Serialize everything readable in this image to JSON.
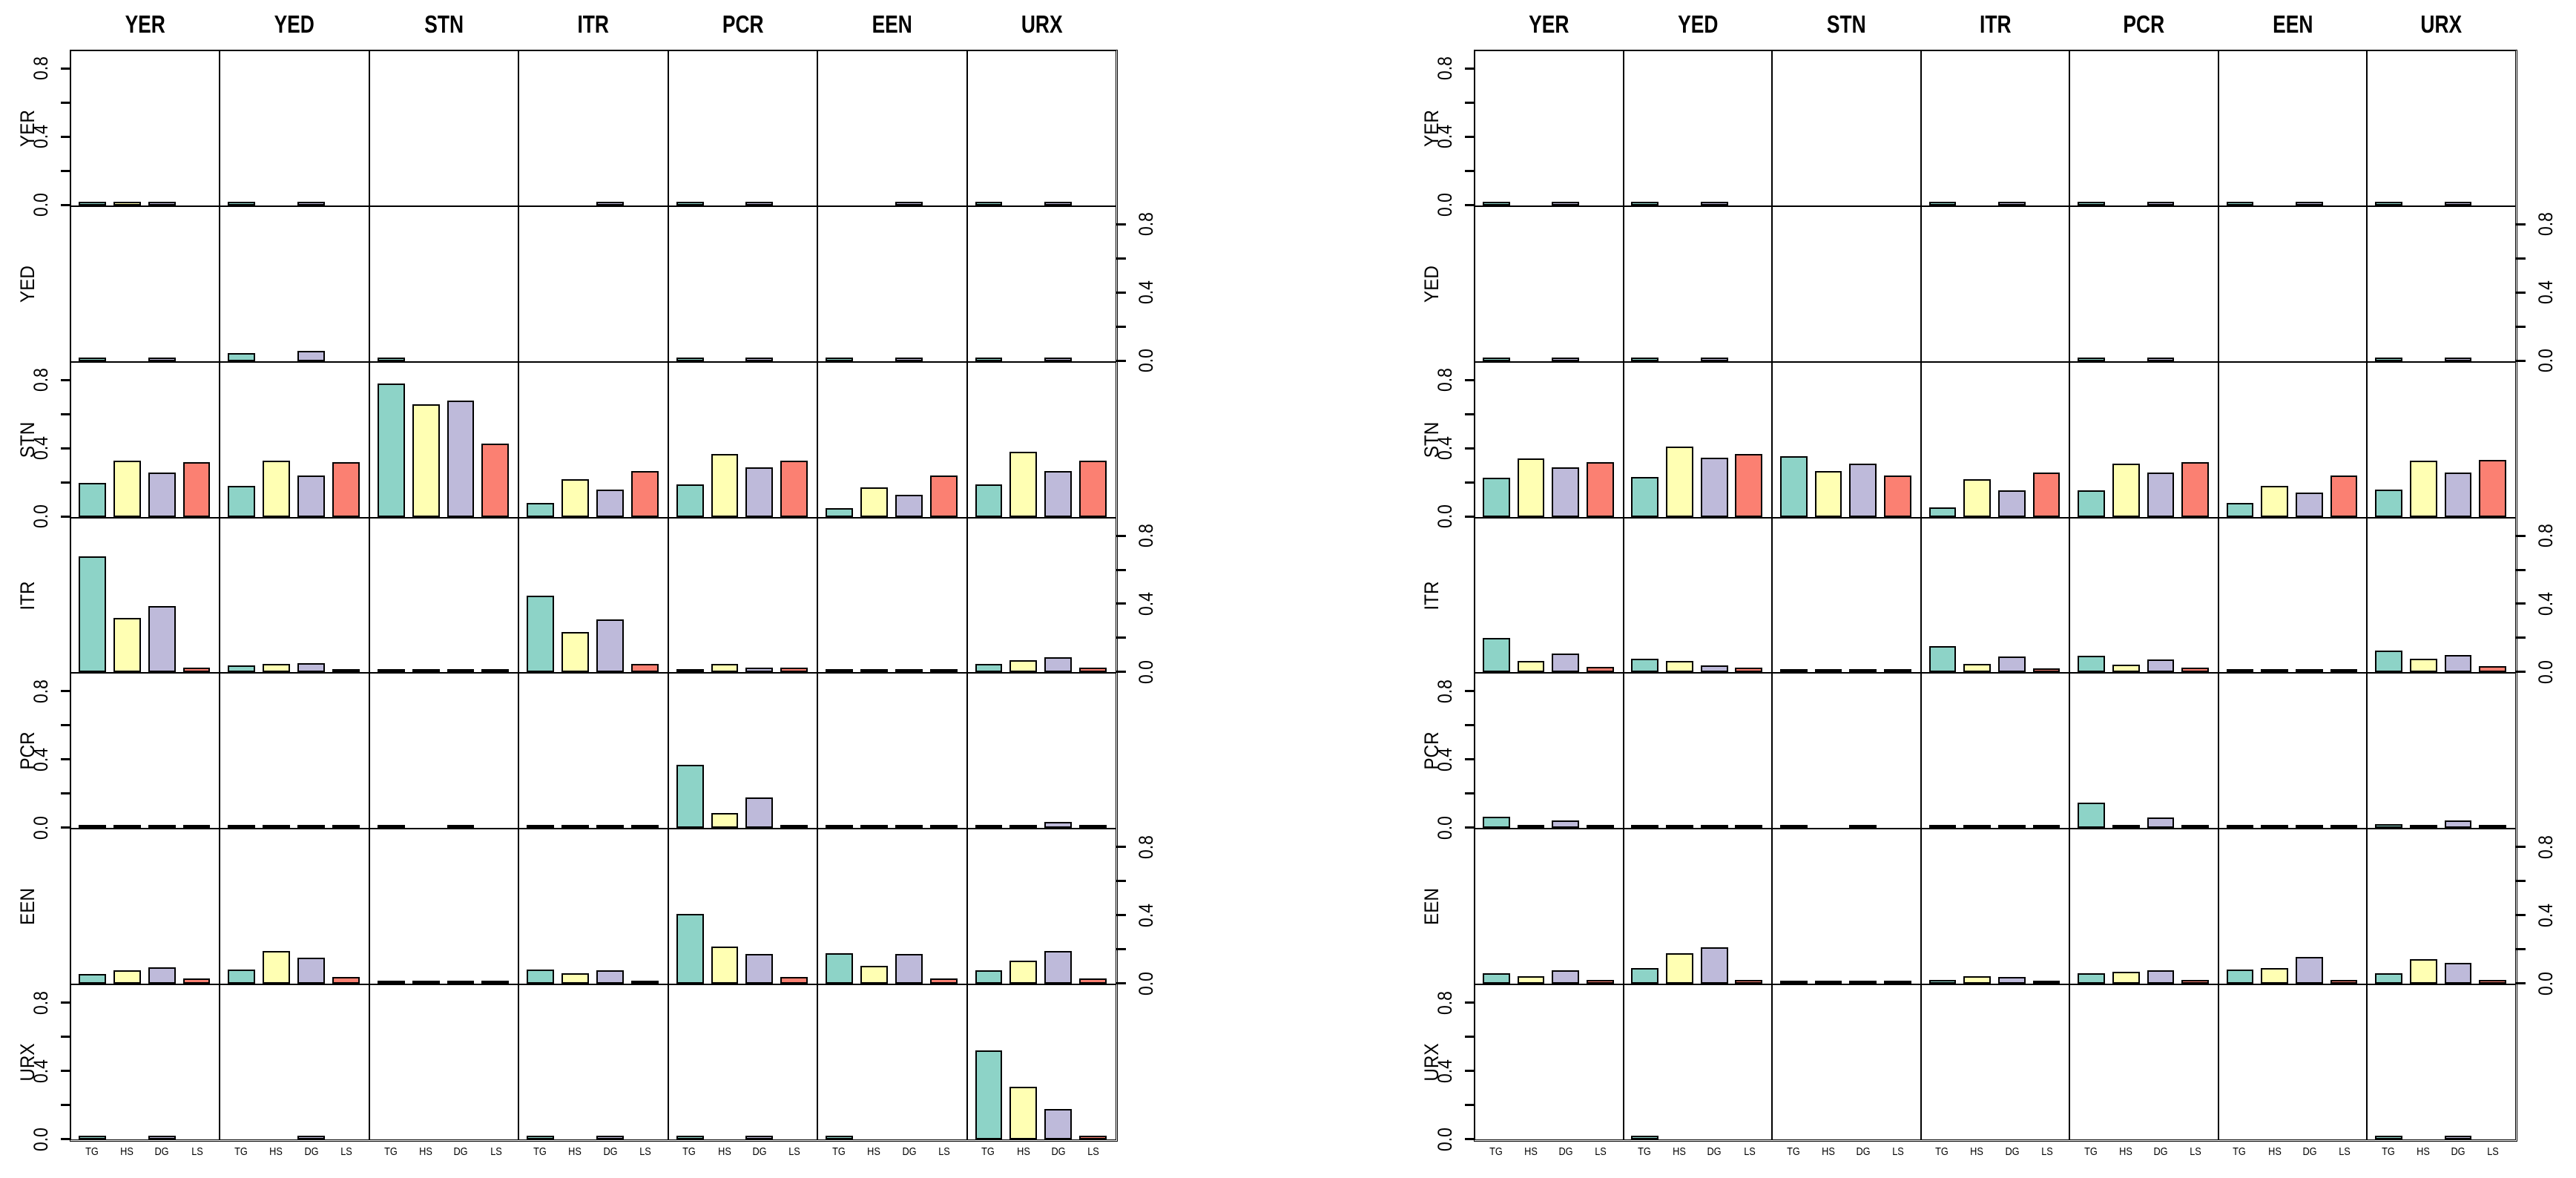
{
  "palette": {
    "bars": {
      "TG": "#8DD3C7",
      "HS": "#FFFFB3",
      "DG": "#BEBADA",
      "LS": "#FB8072"
    },
    "outline": "#000000",
    "text": "#000000",
    "background": "#ffffff"
  },
  "axis": {
    "tick_values": [
      0,
      0.2,
      0.4,
      0.6,
      0.8
    ],
    "labeled_ticks": [
      {
        "value": 0,
        "label": "0.0"
      },
      {
        "value": 0.4,
        "label": "0.4"
      },
      {
        "value": 0.8,
        "label": "0.8"
      }
    ],
    "ymax": 0.9
  },
  "chart_data": [
    {
      "type": "bar",
      "name": "left-trellis",
      "col_labels": [
        "YER",
        "YED",
        "STN",
        "ITR",
        "PCR",
        "EEN",
        "URX"
      ],
      "row_labels": [
        "YER",
        "YED",
        "STN",
        "ITR",
        "PCR",
        "EEN",
        "URX"
      ],
      "bar_labels": [
        "TG",
        "HS",
        "DG",
        "LS"
      ],
      "ylim": [
        0,
        0.9
      ],
      "values": [
        [
          [
            0.012,
            0.004,
            0.012,
            0
          ],
          [
            0.008,
            0,
            0.012,
            0
          ],
          [
            0,
            0,
            0,
            0
          ],
          [
            0,
            0,
            0.008,
            0
          ],
          [
            0.008,
            0,
            0.008,
            0
          ],
          [
            0,
            0,
            0.008,
            0
          ],
          [
            0.012,
            0,
            0.01,
            0
          ]
        ],
        [
          [
            0.008,
            0,
            0.008,
            0
          ],
          [
            0.045,
            0,
            0.06,
            0
          ],
          [
            0.006,
            0,
            0,
            0
          ],
          [
            0,
            0,
            0,
            0
          ],
          [
            0.006,
            0,
            0.006,
            0
          ],
          [
            0.005,
            0,
            0.005,
            0
          ],
          [
            0.006,
            0,
            0.008,
            0
          ]
        ],
        [
          [
            0.2,
            0.33,
            0.26,
            0.32
          ],
          [
            0.18,
            0.33,
            0.24,
            0.32
          ],
          [
            0.78,
            0.66,
            0.68,
            0.43
          ],
          [
            0.08,
            0.22,
            0.16,
            0.27
          ],
          [
            0.19,
            0.37,
            0.29,
            0.33
          ],
          [
            0.05,
            0.17,
            0.13,
            0.24
          ],
          [
            0.19,
            0.38,
            0.27,
            0.33
          ]
        ],
        [
          [
            0.68,
            0.32,
            0.39,
            0.03
          ],
          [
            0.04,
            0.05,
            0.055,
            0.012
          ],
          [
            0.01,
            0.008,
            0.005,
            0.01
          ],
          [
            0.45,
            0.235,
            0.31,
            0.05
          ],
          [
            0.015,
            0.05,
            0.03,
            0.03
          ],
          [
            0.01,
            0.012,
            0.012,
            0.012
          ],
          [
            0.05,
            0.07,
            0.09,
            0.03
          ]
        ],
        [
          [
            0.02,
            0.004,
            0.01,
            0.004
          ],
          [
            0.015,
            0.004,
            0.015,
            0.004
          ],
          [
            0.005,
            0,
            0.005,
            0
          ],
          [
            0.008,
            0.004,
            0.008,
            0.01
          ],
          [
            0.37,
            0.09,
            0.18,
            0.006
          ],
          [
            0.005,
            0.004,
            0.005,
            0.004
          ],
          [
            0.015,
            0.004,
            0.035,
            0.004
          ]
        ],
        [
          [
            0.055,
            0.08,
            0.095,
            0.03
          ],
          [
            0.085,
            0.19,
            0.155,
            0.04
          ],
          [
            0.01,
            0.02,
            0.004,
            0.015
          ],
          [
            0.085,
            0.06,
            0.08,
            0.02
          ],
          [
            0.41,
            0.22,
            0.175,
            0.04
          ],
          [
            0.18,
            0.105,
            0.175,
            0.03
          ],
          [
            0.08,
            0.135,
            0.19,
            0.03
          ]
        ],
        [
          [
            0.008,
            0,
            0.008,
            0
          ],
          [
            0,
            0,
            0.008,
            0
          ],
          [
            0,
            0,
            0,
            0
          ],
          [
            0.008,
            0,
            0.008,
            0
          ],
          [
            0.008,
            0,
            0.008,
            0
          ],
          [
            0.008,
            0,
            0,
            0
          ],
          [
            0.52,
            0.31,
            0.18,
            0.006
          ]
        ]
      ]
    },
    {
      "type": "bar",
      "name": "right-trellis",
      "col_labels": [
        "YER",
        "YED",
        "STN",
        "ITR",
        "PCR",
        "EEN",
        "URX"
      ],
      "row_labels": [
        "YER",
        "YED",
        "STN",
        "ITR",
        "PCR",
        "EEN",
        "URX"
      ],
      "bar_labels": [
        "TG",
        "HS",
        "DG",
        "LS"
      ],
      "ylim": [
        0,
        0.9
      ],
      "values": [
        [
          [
            0.008,
            0,
            0.008,
            0
          ],
          [
            0.015,
            0,
            0.013,
            0
          ],
          [
            0,
            0,
            0,
            0
          ],
          [
            0.005,
            0,
            0.005,
            0
          ],
          [
            0.008,
            0,
            0.008,
            0
          ],
          [
            0.008,
            0,
            0.008,
            0
          ],
          [
            0.008,
            0,
            0.012,
            0
          ]
        ],
        [
          [
            0.005,
            0,
            0.005,
            0
          ],
          [
            0.008,
            0,
            0.008,
            0
          ],
          [
            0,
            0,
            0,
            0
          ],
          [
            0,
            0,
            0,
            0
          ],
          [
            0.015,
            0,
            0.013,
            0
          ],
          [
            0,
            0,
            0,
            0
          ],
          [
            0.004,
            0,
            0.01,
            0
          ]
        ],
        [
          [
            0.23,
            0.34,
            0.29,
            0.32
          ],
          [
            0.235,
            0.41,
            0.345,
            0.37
          ],
          [
            0.355,
            0.27,
            0.31,
            0.24
          ],
          [
            0.055,
            0.22,
            0.155,
            0.26
          ],
          [
            0.155,
            0.31,
            0.26,
            0.32
          ],
          [
            0.08,
            0.18,
            0.14,
            0.24
          ],
          [
            0.16,
            0.33,
            0.26,
            0.335
          ]
        ],
        [
          [
            0.2,
            0.067,
            0.11,
            0.031
          ],
          [
            0.078,
            0.067,
            0.042,
            0.028
          ],
          [
            0.01,
            0.01,
            0.006,
            0.012
          ],
          [
            0.153,
            0.05,
            0.092,
            0.024
          ],
          [
            0.099,
            0.045,
            0.075,
            0.028
          ],
          [
            0.012,
            0.012,
            0.01,
            0.012
          ],
          [
            0.127,
            0.078,
            0.103,
            0.035
          ]
        ],
        [
          [
            0.067,
            0.004,
            0.046,
            0.004
          ],
          [
            0.008,
            0.004,
            0.008,
            0.004
          ],
          [
            0.005,
            0,
            0.005,
            0
          ],
          [
            0.008,
            0.004,
            0.008,
            0.004
          ],
          [
            0.15,
            0.017,
            0.06,
            0.006
          ],
          [
            0.005,
            0.004,
            0.008,
            0.004
          ],
          [
            0.021,
            0.014,
            0.046,
            0.004
          ]
        ],
        [
          [
            0.063,
            0.046,
            0.077,
            0.021
          ],
          [
            0.094,
            0.178,
            0.214,
            0.024
          ],
          [
            0.005,
            0.015,
            0.004,
            0.015
          ],
          [
            0.021,
            0.042,
            0.038,
            0.018
          ],
          [
            0.063,
            0.07,
            0.08,
            0.021
          ],
          [
            0.084,
            0.091,
            0.158,
            0.024
          ],
          [
            0.06,
            0.144,
            0.122,
            0.024
          ]
        ],
        [
          [
            0,
            0,
            0,
            0
          ],
          [
            0.006,
            0,
            0,
            0
          ],
          [
            0,
            0,
            0,
            0
          ],
          [
            0,
            0,
            0,
            0
          ],
          [
            0,
            0,
            0,
            0
          ],
          [
            0,
            0,
            0,
            0
          ],
          [
            0.015,
            0,
            0.015,
            0
          ]
        ]
      ]
    }
  ]
}
